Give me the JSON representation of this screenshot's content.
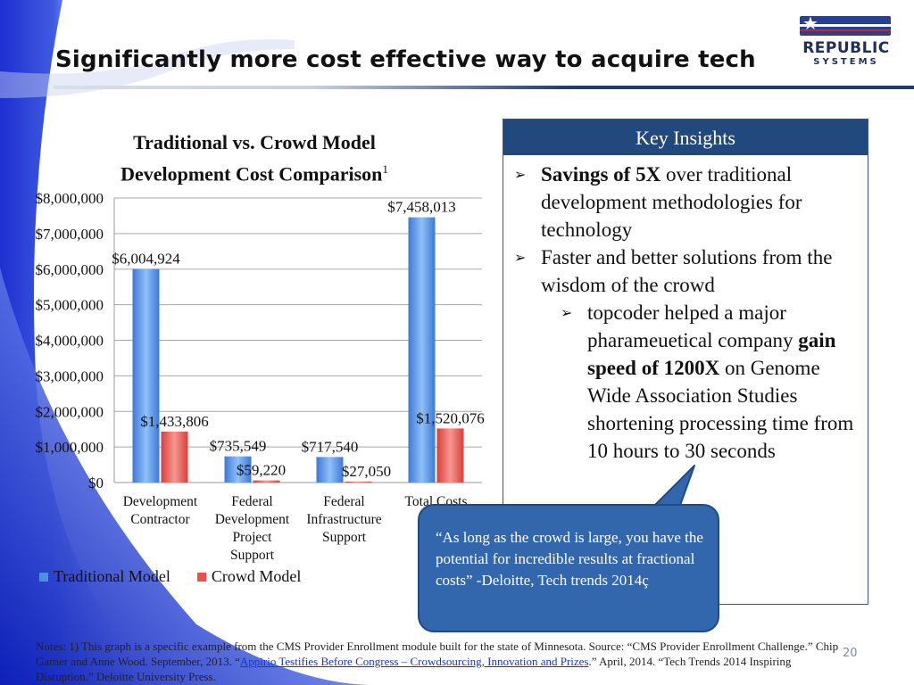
{
  "slide": {
    "title": "Significantly more cost effective way to acquire tech",
    "page_number": "20"
  },
  "logo": {
    "line1": "REPUBLIC",
    "line2": "SYSTEMS"
  },
  "chart_data": {
    "type": "bar",
    "title": "Traditional vs. Crowd Model Development Cost Comparison",
    "title_line1": "Traditional vs. Crowd Model",
    "title_line2": "Development Cost Comparison",
    "footnote_marker": "1",
    "categories": [
      [
        "Development",
        "Contractor"
      ],
      [
        "Federal",
        "Development",
        "Project",
        "Support"
      ],
      [
        "Federal",
        "Infrastructure",
        "Support"
      ],
      [
        "Total Costs"
      ]
    ],
    "series": [
      {
        "name": "Traditional Model",
        "color": "#4f8fe0",
        "values": [
          6004924,
          735549,
          717540,
          7458013
        ],
        "labels": [
          "$6,004,924",
          "$735,549",
          "$717,540",
          "$7,458,013"
        ]
      },
      {
        "name": "Crowd Model",
        "color": "#e8524b",
        "values": [
          1433806,
          59220,
          27050,
          1520076
        ],
        "labels": [
          "$1,433,806",
          "$59,220",
          "$27,050",
          "$1,520,076"
        ]
      }
    ],
    "ylim": [
      0,
      8000000
    ],
    "yticks": [
      {
        "value": 0,
        "label": "$0"
      },
      {
        "value": 1000000,
        "label": "$1,000,000"
      },
      {
        "value": 2000000,
        "label": "$2,000,000"
      },
      {
        "value": 3000000,
        "label": "$3,000,000"
      },
      {
        "value": 4000000,
        "label": "$4,000,000"
      },
      {
        "value": 5000000,
        "label": "$5,000,000"
      },
      {
        "value": 6000000,
        "label": "$6,000,000"
      },
      {
        "value": 7000000,
        "label": "$7,000,000"
      },
      {
        "value": 8000000,
        "label": "$8,000,000"
      }
    ],
    "grid": true,
    "legend": "bottom-left"
  },
  "insights": {
    "header": "Key Insights",
    "bullet1_bold": "Savings of 5X",
    "bullet1_rest": " over traditional development methodologies for technology",
    "bullet2": "Faster and better solutions from the wisdom of the crowd",
    "sub1_part1": "topcoder helped a major pharameuetical company ",
    "sub1_bold": "gain speed of 1200X",
    "sub1_part2": " on Genome Wide Association Studies shortening processing time from 10 hours to 30 seconds"
  },
  "quote": {
    "text": "“As long as the crowd is large, you have the potential for incredible results at fractional costs” -Deloitte, Tech trends 2014ç"
  },
  "notes": {
    "part1": "Notes: 1) This graph is a specific example from the CMS Provider Enrollment module built for the state of Minnesota. Source: “CMS Provider Enrollment Challenge.” Chip Garner and Anne Wood. September, 2013. “",
    "link_text": "Appirio Testifies Before Congress – Crowdsourcing, Innovation and Prizes",
    "part2": ".” April, 2014. “Tech Trends 2014 Inspiring Disruption.” Deloitte University Press."
  }
}
